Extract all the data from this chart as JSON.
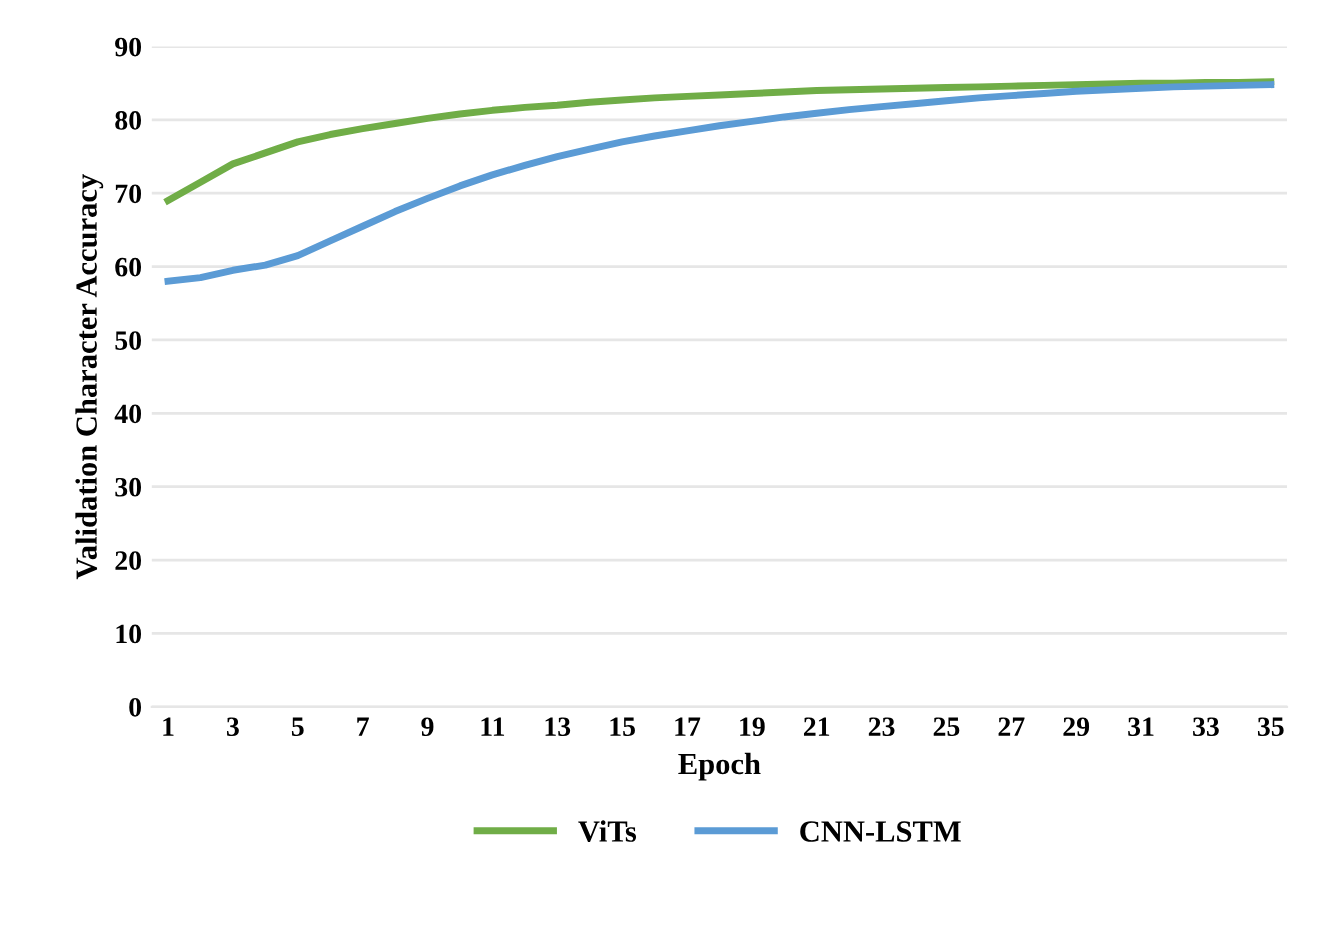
{
  "chart_data": {
    "type": "line",
    "xlabel": "Epoch",
    "ylabel": "Validation Character Accuracy",
    "categories": [
      "1",
      null,
      "3",
      null,
      "5",
      null,
      "7",
      null,
      "9",
      null,
      "11",
      null,
      "13",
      null,
      "15",
      null,
      "17",
      null,
      "19",
      null,
      "21",
      null,
      "23",
      null,
      "25",
      null,
      "27",
      null,
      "29",
      null,
      "31",
      null,
      "33",
      null,
      "35"
    ],
    "series": [
      {
        "name": "ViTs",
        "color": "#70ad47",
        "values": [
          69,
          71.5,
          74,
          75.5,
          77,
          78,
          78.8,
          79.5,
          80.2,
          80.8,
          81.3,
          81.7,
          82,
          82.4,
          82.7,
          83,
          83.2,
          83.4,
          83.6,
          83.8,
          84,
          84.1,
          84.2,
          84.3,
          84.4,
          84.5,
          84.6,
          84.7,
          84.8,
          84.9,
          85,
          85,
          85.1,
          85.1,
          85.2
        ]
      },
      {
        "name": "CNN-LSTM",
        "color": "#5b9bd5",
        "values": [
          58,
          58.5,
          59.5,
          60.2,
          61.5,
          63.5,
          65.5,
          67.5,
          69.3,
          71,
          72.5,
          73.8,
          75,
          76,
          77,
          77.8,
          78.5,
          79.2,
          79.8,
          80.4,
          80.9,
          81.4,
          81.8,
          82.2,
          82.6,
          83,
          83.3,
          83.6,
          83.9,
          84.1,
          84.3,
          84.5,
          84.6,
          84.7,
          84.8
        ]
      }
    ],
    "ylim": [
      0,
      90
    ],
    "yticks": [
      0,
      10,
      20,
      30,
      40,
      50,
      60,
      70,
      80,
      90
    ],
    "grid": "y",
    "legend": "bottom",
    "marker": "none",
    "line_style": "solid"
  }
}
